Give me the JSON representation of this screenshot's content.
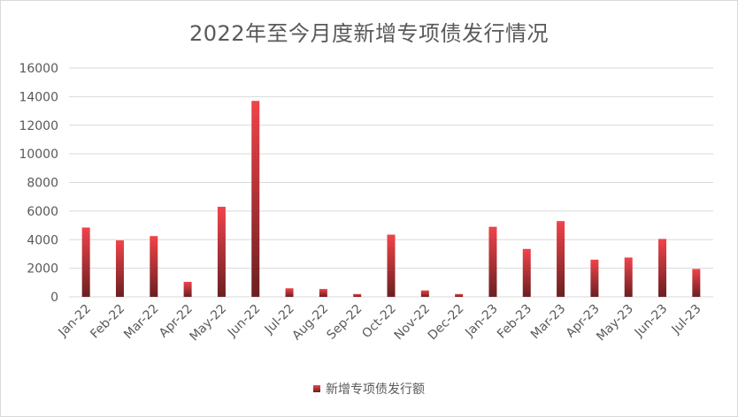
{
  "chart_data": {
    "type": "bar",
    "title": "2022年至今月度新增专项债发行情况",
    "xlabel": "",
    "ylabel": "",
    "ylim": [
      0,
      16000
    ],
    "yticks": [
      0,
      2000,
      4000,
      6000,
      8000,
      10000,
      12000,
      14000,
      16000
    ],
    "grid": true,
    "legend_position": "bottom",
    "categories": [
      "Jan-22",
      "Feb-22",
      "Mar-22",
      "Apr-22",
      "May-22",
      "Jun-22",
      "Jul-22",
      "Aug-22",
      "Sep-22",
      "Oct-22",
      "Nov-22",
      "Dec-22",
      "Jan-23",
      "Feb-23",
      "Mar-23",
      "Apr-23",
      "May-23",
      "Jun-23",
      "Jul-23"
    ],
    "series": [
      {
        "name": "新增专项债发行额",
        "values": [
          4850,
          3950,
          4250,
          1050,
          6300,
          13700,
          600,
          550,
          200,
          4350,
          450,
          200,
          4900,
          3350,
          5300,
          2600,
          2750,
          4050,
          1950
        ],
        "color_top": "#f0444a",
        "color_bottom": "#6b1f22"
      }
    ]
  }
}
